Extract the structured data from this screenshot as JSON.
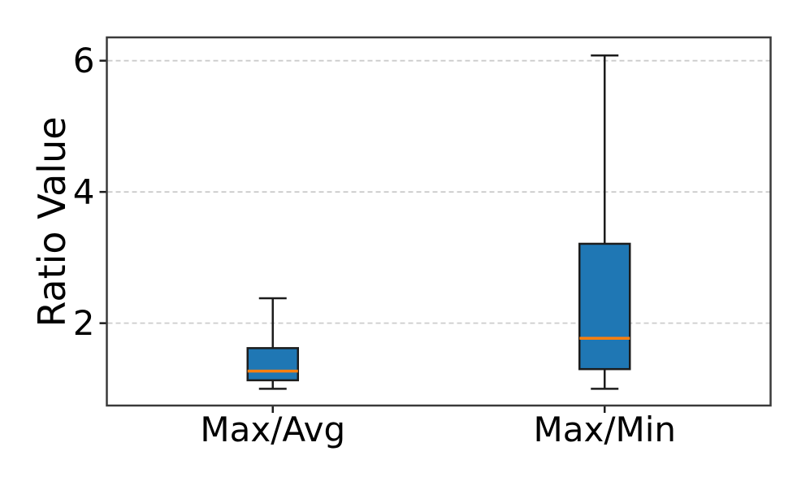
{
  "chart_data": {
    "type": "boxplot",
    "categories": [
      "Max/Avg",
      "Max/Min"
    ],
    "series": [
      {
        "name": "Max/Avg",
        "whisker_low": 1.0,
        "q1": 1.13,
        "median": 1.27,
        "q3": 1.62,
        "whisker_high": 2.38
      },
      {
        "name": "Max/Min",
        "whisker_low": 1.0,
        "q1": 1.3,
        "median": 1.77,
        "q3": 3.21,
        "whisker_high": 6.08
      }
    ],
    "title": "",
    "xlabel": "",
    "ylabel": "Ratio Value",
    "yticks": [
      2,
      4,
      6
    ],
    "ylim": [
      0.745,
      6.355
    ],
    "grid": {
      "axis": "y",
      "style": "dashed",
      "color": "#cccccc"
    },
    "colors": {
      "box_fill": "#1f77b4",
      "box_edge": "#1c1c1c",
      "median": "#ff7f0e",
      "whisker": "#1c1c1c",
      "spine": "#3a3a3a",
      "tick": "#1c1c1c",
      "text": "#000000",
      "background": "#ffffff"
    }
  }
}
